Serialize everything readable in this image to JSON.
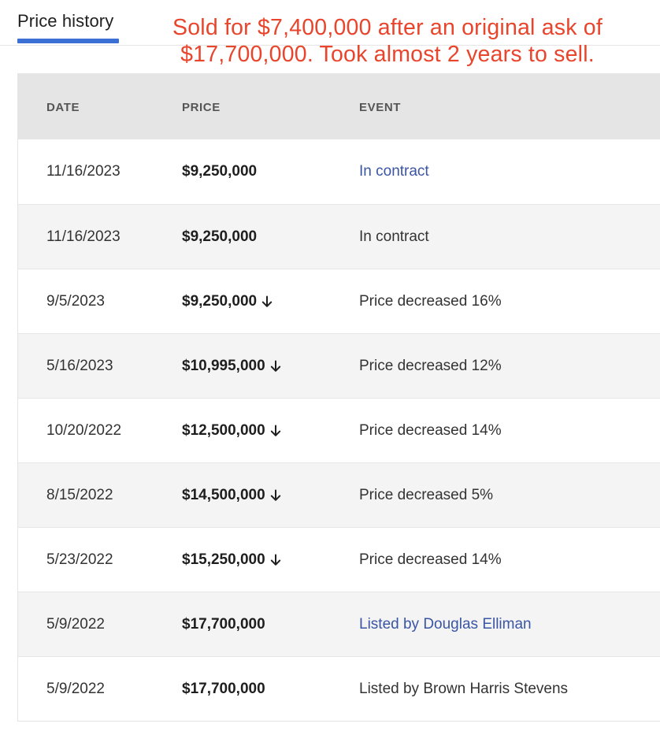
{
  "tab": {
    "label": "Price history"
  },
  "annotation": {
    "line1": "Sold for $7,400,000 after an original ask of",
    "line2": "$17,700,000. Took almost 2 years to sell."
  },
  "table": {
    "headers": {
      "date": "DATE",
      "price": "PRICE",
      "event": "EVENT"
    },
    "rows": [
      {
        "date": "11/16/2023",
        "price": "$9,250,000",
        "decrease": false,
        "event": "In contract",
        "link": true
      },
      {
        "date": "11/16/2023",
        "price": "$9,250,000",
        "decrease": false,
        "event": "In contract",
        "link": false
      },
      {
        "date": "9/5/2023",
        "price": "$9,250,000",
        "decrease": true,
        "event": "Price decreased 16%",
        "link": false
      },
      {
        "date": "5/16/2023",
        "price": "$10,995,000",
        "decrease": true,
        "event": "Price decreased 12%",
        "link": false
      },
      {
        "date": "10/20/2022",
        "price": "$12,500,000",
        "decrease": true,
        "event": "Price decreased 14%",
        "link": false
      },
      {
        "date": "8/15/2022",
        "price": "$14,500,000",
        "decrease": true,
        "event": "Price decreased 5%",
        "link": false
      },
      {
        "date": "5/23/2022",
        "price": "$15,250,000",
        "decrease": true,
        "event": "Price decreased 14%",
        "link": false
      },
      {
        "date": "5/9/2022",
        "price": "$17,700,000",
        "decrease": false,
        "event": "Listed by Douglas Elliman",
        "link": true
      },
      {
        "date": "5/9/2022",
        "price": "$17,700,000",
        "decrease": false,
        "event": "Listed by Brown Harris Stevens",
        "link": false
      }
    ]
  },
  "colors": {
    "accent": "#3b6fd4",
    "annotation": "#e8452c",
    "link": "#3a55a4",
    "header_bg": "#e5e5e5",
    "alt_row_bg": "#f4f4f4"
  },
  "icons": {
    "decrease": "arrow-down-icon"
  }
}
